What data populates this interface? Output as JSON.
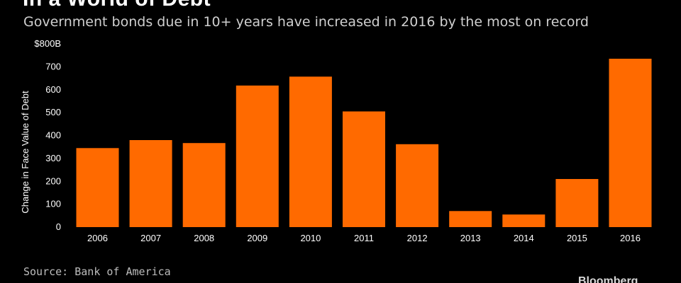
{
  "chart_data": {
    "type": "bar",
    "title": "In a World of Debt",
    "subtitle": "Government bonds due in 10+ years have increased in 2016 by the most on record",
    "xlabel": "",
    "ylabel": "Change in Face Value of Debt",
    "categories": [
      "2006",
      "2007",
      "2008",
      "2009",
      "2010",
      "2011",
      "2012",
      "2013",
      "2014",
      "2015",
      "2016"
    ],
    "values": [
      345,
      380,
      367,
      618,
      657,
      505,
      362,
      70,
      55,
      210,
      735
    ],
    "ylim": [
      0,
      800
    ],
    "yticks": [
      0,
      100,
      200,
      300,
      400,
      500,
      600,
      700,
      800
    ],
    "ytick_labels": [
      "0",
      "100",
      "200",
      "300",
      "400",
      "500",
      "600",
      "700",
      "$800B"
    ],
    "bar_color": "#ff6a00",
    "background": "#000000",
    "grid": false,
    "source": "Source: Bank of America",
    "brand": "Bloomberg"
  }
}
